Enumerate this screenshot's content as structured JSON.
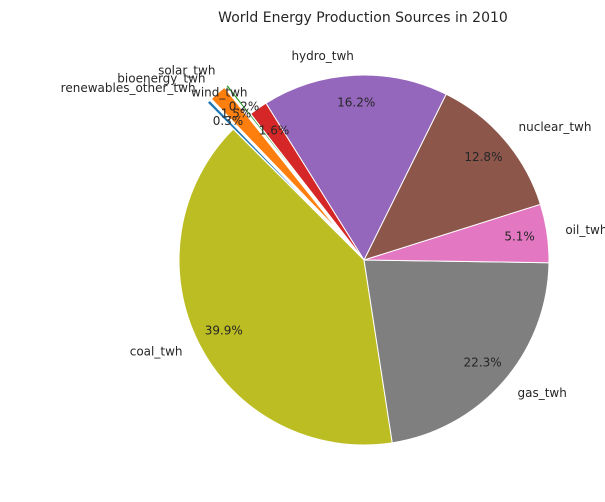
{
  "chart_data": {
    "type": "pie",
    "title": "World Energy Production Sources in 2010",
    "start_angle_deg": 135,
    "direction": "counterclockwise",
    "slices": [
      {
        "label": "coal_twh",
        "value": 39.9,
        "pct_text": "39.9%",
        "color": "#bcbd22",
        "explode": 0
      },
      {
        "label": "gas_twh",
        "value": 22.3,
        "pct_text": "22.3%",
        "color": "#7f7f7f",
        "explode": 0
      },
      {
        "label": "oil_twh",
        "value": 5.1,
        "pct_text": "5.1%",
        "color": "#e377c2",
        "explode": 0
      },
      {
        "label": "nuclear_twh",
        "value": 12.8,
        "pct_text": "12.8%",
        "color": "#8c564b",
        "explode": 0
      },
      {
        "label": "hydro_twh",
        "value": 16.2,
        "pct_text": "16.2%",
        "color": "#9467bd",
        "explode": 0
      },
      {
        "label": "wind_twh",
        "value": 1.6,
        "pct_text": "1.6%",
        "color": "#d62728",
        "explode": 0
      },
      {
        "label": "solar_twh",
        "value": 0.2,
        "pct_text": "0.2%",
        "color": "#2ca02c",
        "explode": 0.2
      },
      {
        "label": "bioenergy_twh",
        "value": 1.5,
        "pct_text": "1.5%",
        "color": "#ff7f0e",
        "explode": 0.2
      },
      {
        "label": "renewables_other_twh",
        "value": 0.3,
        "pct_text": "0.3%",
        "color": "#1f77b4",
        "explode": 0.2
      }
    ]
  }
}
